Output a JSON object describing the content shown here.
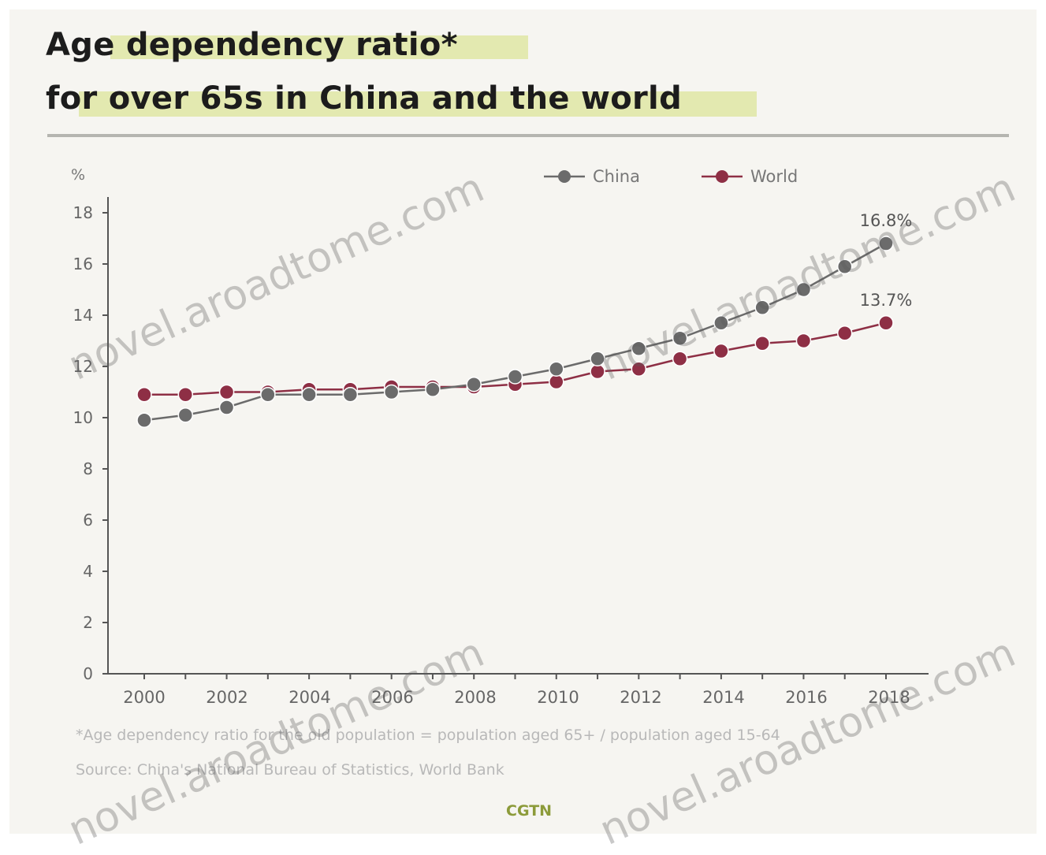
{
  "title": {
    "line1": "Age dependency ratio*",
    "line2": "for over 65s in China and the world"
  },
  "footnote": "*Age dependency ratio for the old population = population aged 65+ / population aged 15-64",
  "source": "Source: China's National Bureau of Statistics, World Bank",
  "brand": "CGTN",
  "watermark": "novel.aroadtome.com",
  "colors": {
    "china": "#6b6b6b",
    "world": "#8e2f45",
    "axis": "#555555",
    "background": "#f6f5f1"
  },
  "chart_data": {
    "type": "line",
    "ylabel": "%",
    "ylim": [
      0,
      18
    ],
    "yticks": [
      "0",
      "2",
      "4",
      "6",
      "8",
      "10",
      "12",
      "14",
      "16",
      "18"
    ],
    "x": [
      2000,
      2001,
      2002,
      2003,
      2004,
      2005,
      2006,
      2007,
      2008,
      2009,
      2010,
      2011,
      2012,
      2013,
      2014,
      2015,
      2016,
      2017,
      2018
    ],
    "xticks": [
      "2000",
      "2002",
      "2004",
      "2006",
      "2008",
      "2010",
      "2012",
      "2014",
      "2016",
      "2018"
    ],
    "series": [
      {
        "name": "China",
        "values": [
          9.9,
          10.1,
          10.4,
          10.9,
          10.9,
          10.9,
          11.0,
          11.1,
          11.3,
          11.6,
          11.9,
          12.3,
          12.7,
          13.1,
          13.7,
          14.3,
          15.0,
          15.9,
          16.8
        ]
      },
      {
        "name": "World",
        "values": [
          10.9,
          10.9,
          11.0,
          11.0,
          11.1,
          11.1,
          11.2,
          11.2,
          11.2,
          11.3,
          11.4,
          11.8,
          11.9,
          12.3,
          12.6,
          12.9,
          13.0,
          13.3,
          13.7
        ]
      }
    ],
    "annotations": [
      {
        "series": "China",
        "x": 2018,
        "label": "16.8%"
      },
      {
        "series": "World",
        "x": 2018,
        "label": "13.7%"
      }
    ],
    "legend": "top-center",
    "grid": false
  }
}
